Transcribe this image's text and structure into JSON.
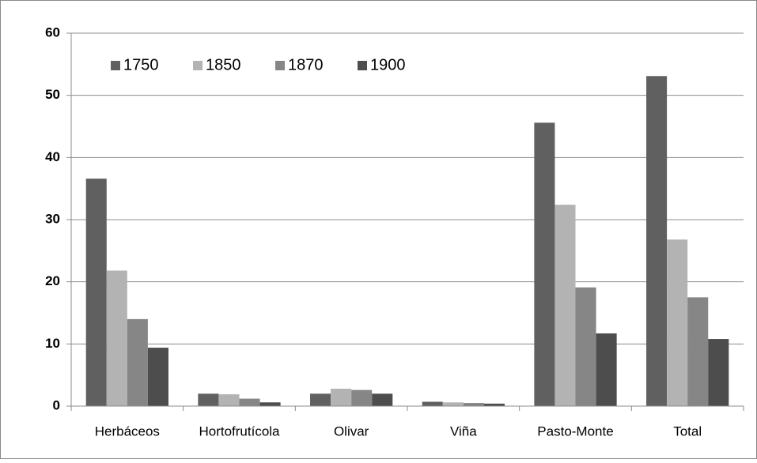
{
  "chart_data": {
    "type": "bar",
    "categories": [
      "Herbáceos",
      "Hortofrutícola",
      "Olivar",
      "Viña",
      "Pasto-Monte",
      "Total"
    ],
    "series": [
      {
        "name": "1750",
        "color": "#606060",
        "values": [
          36.6,
          2.0,
          2.0,
          0.7,
          45.6,
          53.1
        ]
      },
      {
        "name": "1850",
        "color": "#b3b3b3",
        "values": [
          21.8,
          1.9,
          2.8,
          0.6,
          32.4,
          26.8
        ]
      },
      {
        "name": "1870",
        "color": "#868686",
        "values": [
          14.0,
          1.2,
          2.6,
          0.5,
          19.1,
          17.5
        ]
      },
      {
        "name": "1900",
        "color": "#4d4d4d",
        "values": [
          9.4,
          0.6,
          2.0,
          0.4,
          11.7,
          10.8
        ]
      }
    ],
    "ylim": [
      0,
      60
    ],
    "yticks": [
      0,
      10,
      20,
      30,
      40,
      50,
      60
    ],
    "grid": true,
    "legend": "top-left"
  }
}
